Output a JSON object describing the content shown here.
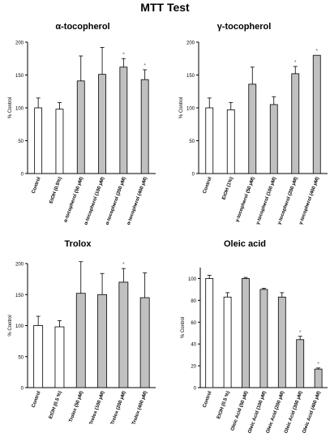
{
  "page": {
    "title": "MTT Test"
  },
  "chart_data": [
    {
      "type": "bar",
      "title": "α-tocopherol",
      "ylabel": "% Control",
      "ylim": [
        0,
        200
      ],
      "yticks": [
        0,
        50,
        100,
        150,
        200
      ],
      "grid": false,
      "categories": [
        "Control",
        "EtOH (0.5%)",
        "α-tocopherol (50 µM)",
        "α-tocopherol (100 µM)",
        "α-tocopherol (200 µM)",
        "α-tocopherol (400 µM)"
      ],
      "values": [
        100,
        98,
        141,
        151,
        162,
        143
      ],
      "errors": [
        15,
        10,
        38,
        41,
        13,
        15
      ],
      "significance": [
        "",
        "",
        "",
        "",
        "*",
        "*"
      ],
      "fills": [
        "white",
        "white",
        "gray",
        "gray",
        "gray",
        "gray"
      ]
    },
    {
      "type": "bar",
      "title": "γ-tocopherol",
      "ylabel": "% Control",
      "ylim": [
        0,
        200
      ],
      "yticks": [
        0,
        50,
        100,
        150,
        200
      ],
      "grid": false,
      "categories": [
        "Control",
        "EtOH (1%)",
        "γ-tocopherol (50 µM)",
        "γ-tocopherol (100 µM)",
        "γ-tocopherol (200 µM)",
        "γ-tocopherol (400 µM)"
      ],
      "values": [
        100,
        97,
        136,
        105,
        152,
        180
      ],
      "errors": [
        15,
        11,
        26,
        12,
        11,
        0
      ],
      "significance": [
        "",
        "",
        "",
        "",
        "*",
        "*"
      ],
      "fills": [
        "white",
        "white",
        "gray",
        "gray",
        "gray",
        "gray"
      ]
    },
    {
      "type": "bar",
      "title": "Trolox",
      "ylabel": "% Control",
      "ylim": [
        0,
        200
      ],
      "yticks": [
        0,
        50,
        100,
        150,
        200
      ],
      "grid": false,
      "categories": [
        "Control",
        "EtOH (0.5 %)",
        "Trolox (50 µM)",
        "Trolox (100 µM)",
        "Trolox (200 µM)",
        "Trolox (400 µM)"
      ],
      "values": [
        100,
        98,
        152,
        150,
        170,
        145
      ],
      "errors": [
        15,
        10,
        51,
        34,
        22,
        40
      ],
      "significance": [
        "",
        "",
        "",
        "",
        "*",
        ""
      ],
      "fills": [
        "white",
        "white",
        "gray",
        "gray",
        "gray",
        "gray"
      ]
    },
    {
      "type": "bar",
      "title": "Oleic acid",
      "ylabel": "% Control",
      "ylim": [
        0,
        110
      ],
      "yticks": [
        0,
        20,
        40,
        60,
        80,
        100
      ],
      "grid": false,
      "categories": [
        "Control",
        "EtOH (0.5 %)",
        "Oleic Acid (50 µM)",
        "Oleic Acid (100 µM)",
        "Oleic Acid (200 µM)",
        "Oleic Acid (300 µM)",
        "Oleic Acid (400 µM)"
      ],
      "values": [
        100,
        83,
        100,
        90,
        83,
        44,
        17
      ],
      "errors": [
        3,
        4,
        1,
        1,
        4,
        3,
        1
      ],
      "significance": [
        "",
        "",
        "",
        "",
        "",
        "*",
        "*"
      ],
      "fills": [
        "white",
        "white",
        "gray",
        "gray",
        "gray",
        "gray",
        "gray"
      ]
    }
  ],
  "colors": {
    "white_bar": "#ffffff",
    "gray_bar": "#c0c0c0",
    "stroke": "#000000"
  }
}
